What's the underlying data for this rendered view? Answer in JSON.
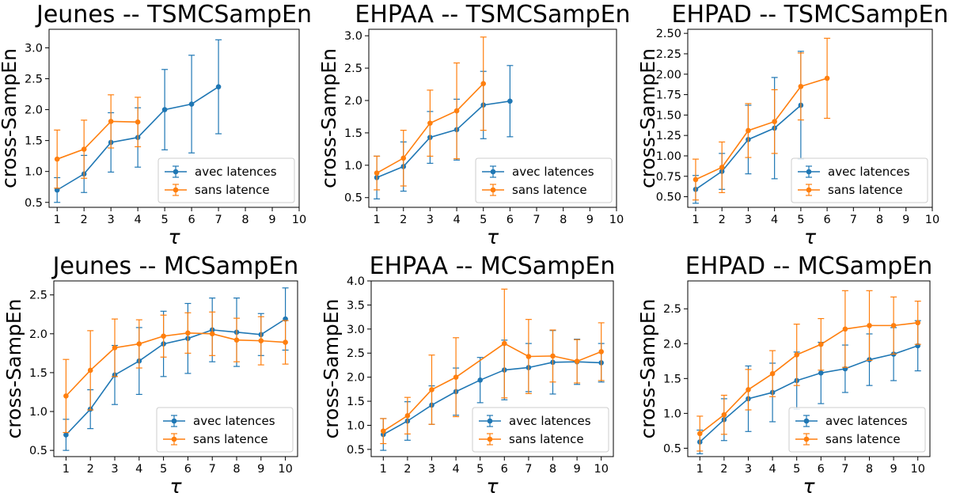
{
  "colors": {
    "avec": "#1f77b4",
    "sans": "#ff7f0e"
  },
  "chart_data": [
    {
      "type": "line",
      "title": "Jeunes -- TSMCSampEn",
      "xlabel": "τ",
      "ylabel": "cross-SampEn",
      "xlim": [
        0.7,
        10
      ],
      "ylim": [
        0.42,
        3.3
      ],
      "xticks": [
        "1",
        "2",
        "3",
        "4",
        "5",
        "6",
        "7",
        "8",
        "9",
        "10"
      ],
      "yticks": [
        "0.5",
        "1.0",
        "1.5",
        "2.0",
        "2.5",
        "3.0"
      ],
      "legend": "lower right",
      "series": [
        {
          "name": "avec latences",
          "color": "#1f77b4",
          "x": [
            1,
            2,
            3,
            4,
            5,
            6,
            7
          ],
          "y": [
            0.7,
            0.96,
            1.47,
            1.55,
            2.0,
            2.09,
            2.37
          ],
          "err": [
            0.2,
            0.3,
            0.48,
            0.48,
            0.65,
            0.79,
            0.76
          ]
        },
        {
          "name": "sans latence",
          "color": "#ff7f0e",
          "x": [
            1,
            2,
            3,
            4
          ],
          "y": [
            1.2,
            1.36,
            1.81,
            1.8
          ],
          "err": [
            0.47,
            0.47,
            0.43,
            0.4
          ]
        }
      ]
    },
    {
      "type": "line",
      "title": "EHPAA -- TSMCSampEn",
      "xlabel": "τ",
      "ylabel": "cross-SampEn",
      "xlim": [
        0.7,
        10
      ],
      "ylim": [
        0.35,
        3.1
      ],
      "xticks": [
        "1",
        "2",
        "3",
        "4",
        "5",
        "6",
        "7",
        "8",
        "9",
        "10"
      ],
      "yticks": [
        "0.5",
        "1.0",
        "1.5",
        "2.0",
        "2.5",
        "3.0"
      ],
      "legend": "lower right",
      "series": [
        {
          "name": "avec latences",
          "color": "#1f77b4",
          "x": [
            1,
            2,
            3,
            4,
            5,
            6
          ],
          "y": [
            0.81,
            0.98,
            1.43,
            1.55,
            1.93,
            1.99
          ],
          "err": [
            0.33,
            0.38,
            0.4,
            0.47,
            0.52,
            0.55
          ]
        },
        {
          "name": "sans latence",
          "color": "#ff7f0e",
          "x": [
            1,
            2,
            3,
            4,
            5
          ],
          "y": [
            0.88,
            1.11,
            1.65,
            1.84,
            2.26
          ],
          "err": [
            0.26,
            0.43,
            0.51,
            0.74,
            0.72
          ]
        }
      ]
    },
    {
      "type": "line",
      "title": "EHPAD -- TSMCSampEn",
      "xlabel": "τ",
      "ylabel": "cross-SampEn",
      "xlim": [
        0.7,
        10
      ],
      "ylim": [
        0.37,
        2.55
      ],
      "xticks": [
        "1",
        "2",
        "3",
        "4",
        "5",
        "6",
        "7",
        "8",
        "9",
        "10"
      ],
      "yticks": [
        "0.50",
        "0.75",
        "1.00",
        "1.25",
        "1.50",
        "1.75",
        "2.00",
        "2.25",
        "2.50"
      ],
      "legend": "lower right",
      "series": [
        {
          "name": "avec latences",
          "color": "#1f77b4",
          "x": [
            1,
            2,
            3,
            4,
            5
          ],
          "y": [
            0.59,
            0.81,
            1.2,
            1.34,
            1.62
          ],
          "err": [
            0.17,
            0.22,
            0.42,
            0.62,
            0.66
          ]
        },
        {
          "name": "sans latence",
          "color": "#ff7f0e",
          "x": [
            1,
            2,
            3,
            4,
            5,
            6
          ],
          "y": [
            0.71,
            0.86,
            1.31,
            1.42,
            1.85,
            1.95
          ],
          "err": [
            0.25,
            0.31,
            0.33,
            0.39,
            0.41,
            0.49
          ]
        }
      ]
    },
    {
      "type": "line",
      "title": "Jeunes -- MCSampEn",
      "xlabel": "τ",
      "ylabel": "cross-SampEn",
      "xlim": [
        0.5,
        10.5
      ],
      "ylim": [
        0.42,
        2.68
      ],
      "xticks": [
        "1",
        "2",
        "3",
        "4",
        "5",
        "6",
        "7",
        "8",
        "9",
        "10"
      ],
      "yticks": [
        "0.5",
        "1.0",
        "1.5",
        "2.0",
        "2.5"
      ],
      "legend": "lower right",
      "series": [
        {
          "name": "avec latences",
          "color": "#1f77b4",
          "x": [
            1,
            2,
            3,
            4,
            5,
            6,
            7,
            8,
            9,
            10
          ],
          "y": [
            0.7,
            1.03,
            1.47,
            1.65,
            1.87,
            1.94,
            2.05,
            2.02,
            1.99,
            2.19
          ],
          "err": [
            0.2,
            0.25,
            0.38,
            0.43,
            0.42,
            0.45,
            0.41,
            0.44,
            0.27,
            0.4
          ]
        },
        {
          "name": "sans latence",
          "color": "#ff7f0e",
          "x": [
            1,
            2,
            3,
            4,
            5,
            6,
            7,
            8,
            9,
            10
          ],
          "y": [
            1.2,
            1.53,
            1.82,
            1.87,
            1.97,
            2.01,
            2.0,
            1.92,
            1.91,
            1.89
          ],
          "err": [
            0.47,
            0.51,
            0.37,
            0.31,
            0.27,
            0.26,
            0.28,
            0.28,
            0.31,
            0.28
          ]
        }
      ]
    },
    {
      "type": "line",
      "title": "EHPAA -- MCSampEn",
      "xlabel": "τ",
      "ylabel": "cross-SampEn",
      "xlim": [
        0.5,
        10.5
      ],
      "ylim": [
        0.35,
        4.0
      ],
      "xticks": [
        "1",
        "2",
        "3",
        "4",
        "5",
        "6",
        "7",
        "8",
        "9",
        "10"
      ],
      "yticks": [
        "0.5",
        "1.0",
        "1.5",
        "2.0",
        "2.5",
        "3.0",
        "3.5",
        "4.0"
      ],
      "legend": "lower right",
      "series": [
        {
          "name": "avec latences",
          "color": "#1f77b4",
          "x": [
            1,
            2,
            3,
            4,
            5,
            6,
            7,
            8,
            9,
            10
          ],
          "y": [
            0.81,
            1.09,
            1.42,
            1.7,
            1.94,
            2.15,
            2.2,
            2.31,
            2.32,
            2.3
          ],
          "err": [
            0.33,
            0.4,
            0.4,
            0.49,
            0.47,
            0.62,
            0.5,
            0.66,
            0.47,
            0.4
          ]
        },
        {
          "name": "sans latence",
          "color": "#ff7f0e",
          "x": [
            1,
            2,
            3,
            4,
            6,
            7,
            8,
            9,
            10
          ],
          "y": [
            0.88,
            1.2,
            1.74,
            2.0,
            2.7,
            2.43,
            2.44,
            2.33,
            2.53
          ],
          "err": [
            0.26,
            0.38,
            0.72,
            0.82,
            1.13,
            0.77,
            0.54,
            0.45,
            0.6
          ]
        }
      ]
    },
    {
      "type": "line",
      "title": "EHPAD -- MCSampEn",
      "xlabel": "τ",
      "ylabel": "cross-SampEn",
      "xlim": [
        0.5,
        10.5
      ],
      "ylim": [
        0.38,
        2.9
      ],
      "xticks": [
        "1",
        "2",
        "3",
        "4",
        "5",
        "6",
        "7",
        "8",
        "9",
        "10"
      ],
      "yticks": [
        "0.5",
        "1.0",
        "1.5",
        "2.0",
        "2.5"
      ],
      "legend": "lower right",
      "series": [
        {
          "name": "avec latences",
          "color": "#1f77b4",
          "x": [
            1,
            2,
            3,
            4,
            5,
            6,
            7,
            8,
            9,
            10
          ],
          "y": [
            0.59,
            0.91,
            1.21,
            1.3,
            1.47,
            1.58,
            1.64,
            1.77,
            1.85,
            1.97
          ],
          "err": [
            0.17,
            0.3,
            0.47,
            0.42,
            0.41,
            0.44,
            0.34,
            0.37,
            0.38,
            0.36
          ]
        },
        {
          "name": "sans latence",
          "color": "#ff7f0e",
          "x": [
            1,
            2,
            3,
            4,
            5,
            6,
            7,
            8,
            9,
            10
          ],
          "y": [
            0.71,
            0.98,
            1.34,
            1.57,
            1.84,
            1.99,
            2.21,
            2.26,
            2.26,
            2.3
          ],
          "err": [
            0.25,
            0.28,
            0.29,
            0.33,
            0.44,
            0.37,
            0.55,
            0.5,
            0.41,
            0.31
          ]
        }
      ]
    }
  ]
}
